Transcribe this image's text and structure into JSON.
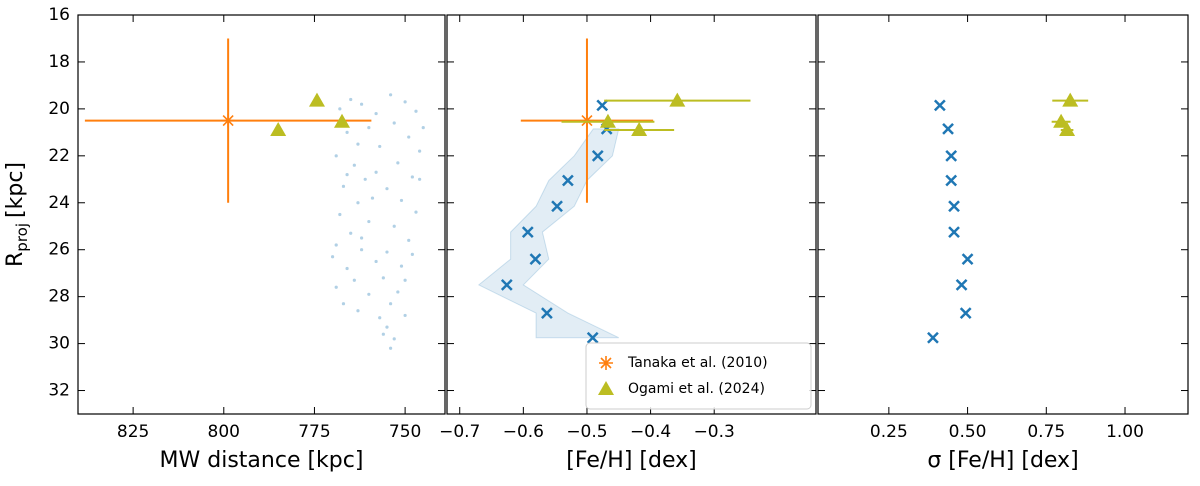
{
  "chart_data": [
    {
      "type": "scatter",
      "xlabel": "MW distance [kpc]",
      "ylabel": "R",
      "ylabel_sub": "proj",
      "ylabel_unit": "[kpc]",
      "xlim": [
        840.2,
        739
      ],
      "xticks": [
        825,
        800,
        775,
        750
      ],
      "ylim": [
        33,
        16
      ],
      "yticks": [
        16,
        18,
        20,
        22,
        24,
        26,
        28,
        30,
        32
      ],
      "series": [
        {
          "color": "#1f77b4",
          "marker": "dot",
          "x": [
            768,
            765,
            762,
            758,
            766,
            763,
            760,
            769,
            764,
            761,
            767,
            758,
            763,
            768,
            760,
            765,
            769,
            762,
            758,
            766,
            764,
            769,
            760,
            767,
            763,
            770,
            757,
            766,
            762,
            759,
            754,
            750,
            747,
            753,
            749,
            746,
            752,
            748,
            755,
            751,
            747,
            753,
            749,
            755,
            751,
            756,
            752,
            754,
            750,
            755,
            753,
            754,
            748,
            746,
            750,
            757,
            756,
            745
          ],
          "y": [
            20.0,
            19.6,
            19.8,
            20.2,
            21.0,
            21.5,
            20.8,
            22.0,
            22.4,
            23.0,
            23.3,
            22.7,
            24.0,
            24.5,
            24.8,
            25.3,
            25.8,
            26.0,
            26.5,
            26.8,
            27.3,
            27.6,
            27.9,
            28.3,
            28.6,
            26.3,
            21.6,
            22.8,
            25.5,
            23.8,
            19.4,
            19.7,
            20.1,
            20.6,
            21.2,
            21.8,
            22.3,
            22.9,
            23.4,
            23.9,
            24.4,
            25.0,
            25.6,
            26.1,
            26.7,
            27.2,
            27.8,
            28.3,
            28.8,
            29.3,
            29.8,
            30.2,
            26.2,
            23.0,
            27.3,
            28.9,
            29.6,
            20.8
          ]
        },
        {
          "color": "#ff7f0e",
          "marker": "star",
          "x": [
            798.8
          ],
          "y": [
            20.5
          ],
          "xerr": [
            39.5
          ],
          "yerr": [
            3.5
          ]
        },
        {
          "color": "#bcbd22",
          "marker": "triangle",
          "x": [
            774.3,
            767.4,
            785
          ],
          "y": [
            19.65,
            20.55,
            20.9
          ]
        }
      ]
    },
    {
      "type": "scatter",
      "xlabel": "[Fe/H] [dex]",
      "legend": "lower right",
      "xlim": [
        -0.72,
        -0.14
      ],
      "xticks": [
        {
          "value": -0.7,
          "label": "−0.7"
        },
        {
          "value": -0.6,
          "label": "−0.6"
        },
        {
          "value": -0.5,
          "label": "−0.5"
        },
        {
          "value": -0.4,
          "label": "−0.4"
        },
        {
          "value": -0.3,
          "label": "−0.3"
        }
      ],
      "ylim": [
        33,
        16
      ],
      "yticks": [
        16,
        18,
        20,
        22,
        24,
        26,
        28,
        30,
        32
      ],
      "band": {
        "color": "#1f77b4",
        "y": [
          20.85,
          22.0,
          23.05,
          24.15,
          25.25,
          26.4,
          27.5,
          28.7,
          29.75
        ],
        "x_low": [
          -0.49,
          -0.52,
          -0.56,
          -0.58,
          -0.62,
          -0.62,
          -0.67,
          -0.58,
          -0.58
        ],
        "x_high": [
          -0.45,
          -0.46,
          -0.5,
          -0.52,
          -0.57,
          -0.56,
          -0.6,
          -0.53,
          -0.45
        ]
      },
      "series": [
        {
          "color": "#1f77b4",
          "marker": "x",
          "x": [
            -0.476,
            -0.469,
            -0.483,
            -0.53,
            -0.547,
            -0.593,
            -0.581,
            -0.626,
            -0.563,
            -0.491
          ],
          "y": [
            19.85,
            20.85,
            22.0,
            23.05,
            24.15,
            25.25,
            26.4,
            27.5,
            28.7,
            29.75
          ]
        },
        {
          "name": "Tanaka et al. (2010)",
          "color": "#ff7f0e",
          "marker": "star",
          "x": [
            -0.5
          ],
          "y": [
            20.5
          ],
          "xerr": [
            0.104
          ],
          "yerr": [
            3.5
          ]
        },
        {
          "name": "Ogami et al. (2024)",
          "color": "#bcbd22",
          "marker": "triangle",
          "x": [
            -0.358,
            -0.467,
            -0.418
          ],
          "y": [
            19.65,
            20.55,
            20.9
          ],
          "xerr": [
            0.115,
            0.073,
            0.055
          ]
        }
      ]
    },
    {
      "type": "scatter",
      "xlabel": "σ [Fe/H] [dex]",
      "xlim": [
        0.025,
        1.2
      ],
      "xticks": [
        0.25,
        {
          "value": 0.5,
          "label": "0.50"
        },
        0.75,
        {
          "value": 1.0,
          "label": "1.00"
        }
      ],
      "ylim": [
        33,
        16
      ],
      "yticks": [
        16,
        18,
        20,
        22,
        24,
        26,
        28,
        30,
        32
      ],
      "series": [
        {
          "color": "#1f77b4",
          "marker": "x",
          "x": [
            0.412,
            0.438,
            0.448,
            0.448,
            0.457,
            0.457,
            0.5,
            0.481,
            0.494,
            0.39
          ],
          "y": [
            19.85,
            20.85,
            22.0,
            23.05,
            24.15,
            25.25,
            26.4,
            27.5,
            28.7,
            29.75
          ]
        },
        {
          "color": "#bcbd22",
          "marker": "triangle",
          "x": [
            0.826,
            0.797,
            0.816
          ],
          "y": [
            19.65,
            20.55,
            20.9
          ],
          "xerr": [
            0.057,
            0.03,
            0.02
          ]
        }
      ]
    }
  ]
}
